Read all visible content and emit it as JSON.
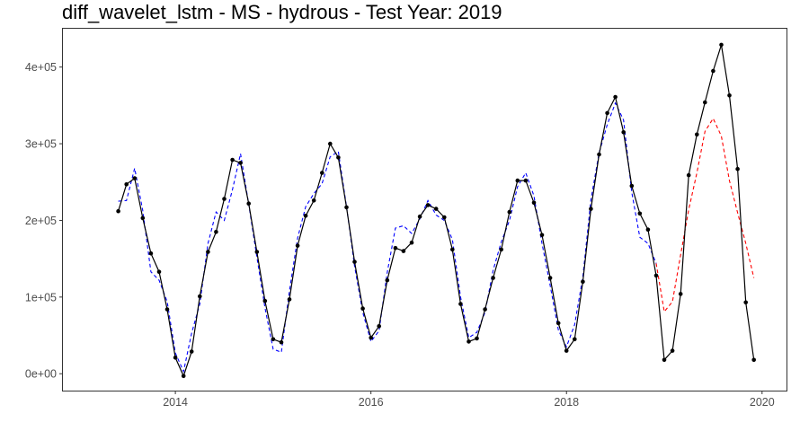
{
  "chart_data": {
    "type": "line",
    "title": "diff_wavelet_lstm - MS - hydrous - Test Year: 2019",
    "xlabel": "",
    "ylabel": "",
    "x_ticks": [
      {
        "value": 2014,
        "label": "2014"
      },
      {
        "value": 2016,
        "label": "2016"
      },
      {
        "value": 2018,
        "label": "2018"
      },
      {
        "value": 2020,
        "label": "2020"
      }
    ],
    "y_ticks": [
      {
        "value": 0,
        "label": "0e+00"
      },
      {
        "value": 100000,
        "label": "1e+05"
      },
      {
        "value": 200000,
        "label": "2e+05"
      },
      {
        "value": 300000,
        "label": "3e+05"
      },
      {
        "value": 400000,
        "label": "4e+05"
      }
    ],
    "xlim": [
      2012.85,
      2020.25
    ],
    "ylim": [
      -22000,
      450000
    ],
    "grid": false,
    "x_start": "2013-06",
    "x_step_months": 1,
    "series": [
      {
        "role": "observed",
        "style": "solid",
        "markers": true,
        "color": "#000000",
        "values": [
          212000,
          247000,
          255000,
          203000,
          157000,
          133000,
          84000,
          21000,
          -3000,
          29000,
          101000,
          159000,
          185000,
          228000,
          279000,
          275000,
          222000,
          159000,
          95000,
          45000,
          41000,
          97000,
          167000,
          206000,
          226000,
          262000,
          300000,
          282000,
          217000,
          146000,
          85000,
          47000,
          62000,
          122000,
          164000,
          160000,
          171000,
          205000,
          220000,
          215000,
          204000,
          162000,
          91000,
          42000,
          46000,
          84000,
          125000,
          162000,
          211000,
          252000,
          252000,
          223000,
          181000,
          125000,
          66000,
          30000,
          45000,
          120000,
          215000,
          286000,
          340000,
          361000,
          315000,
          245000,
          209000,
          188000,
          128000,
          18000,
          30000,
          104000,
          259000,
          312000,
          354000,
          395000,
          429000,
          363000,
          267000,
          93000,
          18000
        ]
      },
      {
        "role": "fitted",
        "style": "dashed",
        "markers": false,
        "color": "#0000ff",
        "values": [
          225000,
          226000,
          268000,
          213000,
          133000,
          122000,
          94000,
          27000,
          3000,
          53000,
          91000,
          170000,
          211000,
          200000,
          240000,
          287000,
          221000,
          152000,
          86000,
          32000,
          28000,
          108000,
          177000,
          218000,
          235000,
          248000,
          283000,
          290000,
          218000,
          140000,
          80000,
          42000,
          56000,
          132000,
          190000,
          193000,
          183000,
          202000,
          226000,
          207000,
          200000,
          175000,
          100000,
          47000,
          54000,
          80000,
          135000,
          172000,
          200000,
          244000,
          262000,
          232000,
          170000,
          115000,
          57000,
          35000,
          64000,
          126000,
          227000,
          288000,
          325000,
          353000,
          331000,
          237000,
          178000,
          170000,
          144000
        ]
      },
      {
        "role": "forecast",
        "style": "dashed",
        "markers": false,
        "color": "#ff0000",
        "values": [
          null,
          null,
          null,
          null,
          null,
          null,
          null,
          null,
          null,
          null,
          null,
          null,
          null,
          null,
          null,
          null,
          null,
          null,
          null,
          null,
          null,
          null,
          null,
          null,
          null,
          null,
          null,
          null,
          null,
          null,
          null,
          null,
          null,
          null,
          null,
          null,
          null,
          null,
          null,
          null,
          null,
          null,
          null,
          null,
          null,
          null,
          null,
          null,
          null,
          null,
          null,
          null,
          null,
          null,
          null,
          null,
          null,
          null,
          null,
          null,
          null,
          null,
          null,
          null,
          null,
          null,
          144000,
          81000,
          94000,
          155000,
          214000,
          262000,
          316000,
          333000,
          310000,
          252000,
          210000,
          170000,
          125000
        ]
      }
    ]
  }
}
